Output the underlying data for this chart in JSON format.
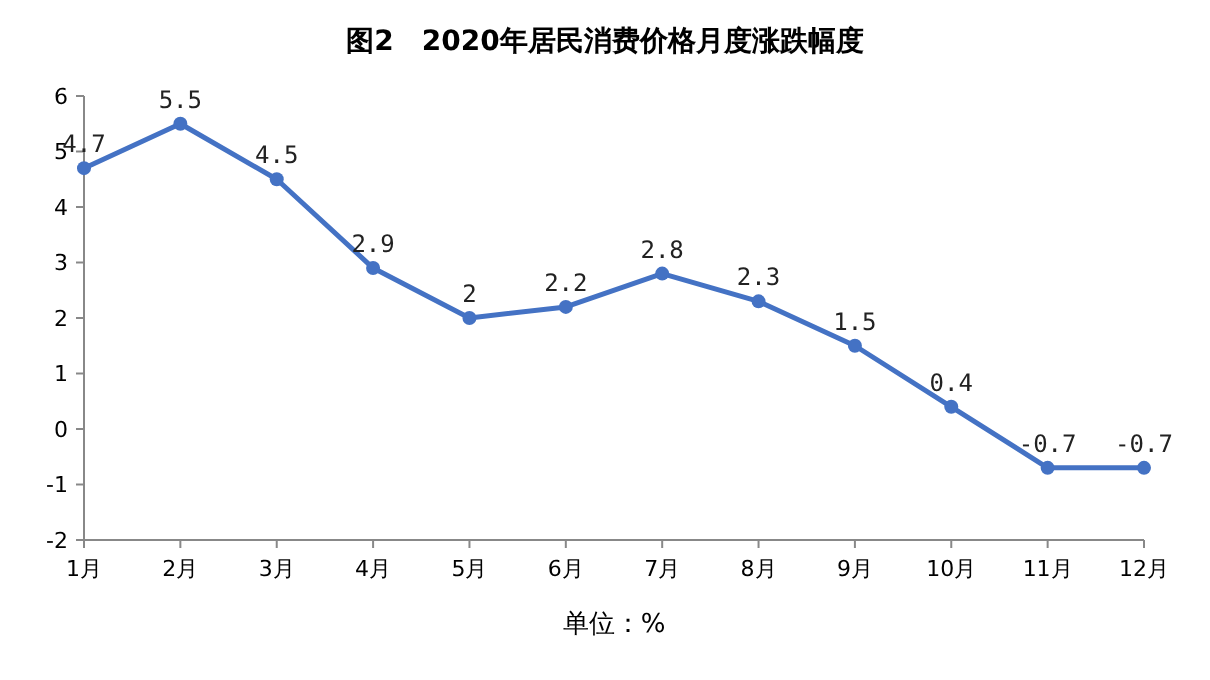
{
  "chart_data": {
    "type": "line",
    "title": "图2　2020年居民消费价格月度涨跌幅度",
    "xlabel": "单位：%",
    "categories": [
      "1月",
      "2月",
      "3月",
      "4月",
      "5月",
      "6月",
      "7月",
      "8月",
      "9月",
      "10月",
      "11月",
      "12月"
    ],
    "series": [
      {
        "color": "#4472c4",
        "values": [
          4.7,
          5.5,
          4.5,
          2.9,
          2,
          2.2,
          2.8,
          2.3,
          1.5,
          0.4,
          -0.7,
          -0.7
        ]
      }
    ],
    "ylim": [
      -2,
      6
    ],
    "yticks": [
      -2,
      -1,
      0,
      1,
      2,
      3,
      4,
      5,
      6
    ],
    "data_labels": true,
    "marker": "circle"
  }
}
